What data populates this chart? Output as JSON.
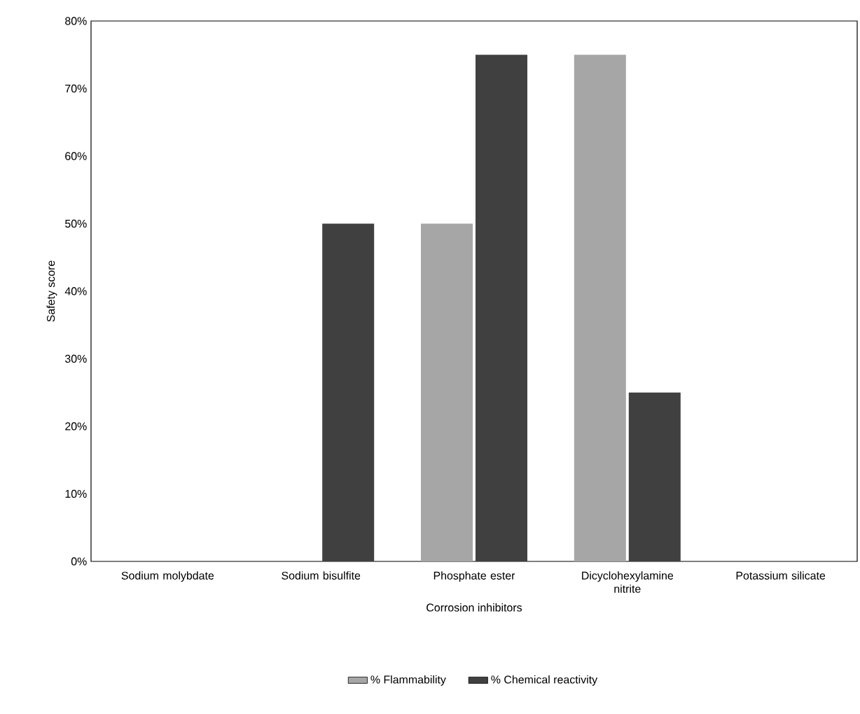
{
  "chart_data": {
    "type": "bar",
    "xlabel": "Corrosion inhibitors",
    "ylabel": "Safety score",
    "categories": [
      "Sodium molybdate",
      "Sodium bisulfite",
      "Phosphate ester",
      "Dicyclohexylamine nitrite",
      "Potassium silicate"
    ],
    "series": [
      {
        "name": "% Flammability",
        "color": "#a6a6a6",
        "values": [
          0,
          0,
          50,
          75,
          0
        ]
      },
      {
        "name": "% Chemical reactivity",
        "color": "#404040",
        "values": [
          0,
          50,
          75,
          25,
          0
        ]
      }
    ],
    "ylim": [
      0,
      80
    ],
    "yticks": [
      {
        "value": 0,
        "label": "0%"
      },
      {
        "value": 10,
        "label": "10%"
      },
      {
        "value": 20,
        "label": "20%"
      },
      {
        "value": 30,
        "label": "30%"
      },
      {
        "value": 40,
        "label": "40%"
      },
      {
        "value": 50,
        "label": "50%"
      },
      {
        "value": 60,
        "label": "60%"
      },
      {
        "value": 70,
        "label": "70%"
      },
      {
        "value": 80,
        "label": "80%"
      }
    ],
    "legend": "bottom"
  }
}
